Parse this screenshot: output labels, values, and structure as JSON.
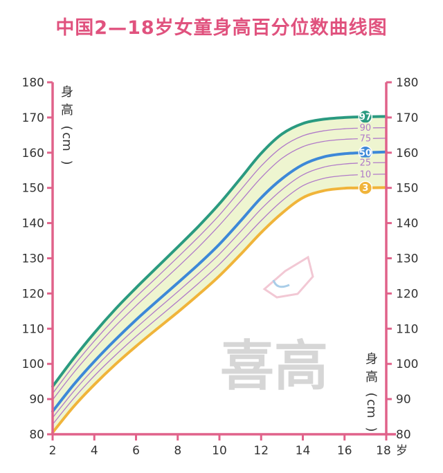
{
  "title": "中国2—18岁女童身高百分位数曲线图",
  "colors": {
    "title": "#e0527e",
    "axis": "#e0628a",
    "band_fill": "#eef5d0",
    "p97": "#2a9a80",
    "p50": "#3d88d8",
    "p3": "#f0b43a",
    "thin": "#b07ac8"
  },
  "watermark": "喜高",
  "chart_data": {
    "type": "line",
    "title": "中国2—18岁女童身高百分位数曲线图",
    "xlabel_unit": "岁",
    "ylabel_chars": [
      "身",
      "高",
      "(",
      "cm",
      ")"
    ],
    "xlim": [
      2,
      18
    ],
    "ylim": [
      80,
      180
    ],
    "x_ticks": [
      2,
      4,
      6,
      8,
      10,
      12,
      14,
      16,
      18
    ],
    "y_ticks": [
      80,
      90,
      100,
      110,
      120,
      130,
      140,
      150,
      160,
      170,
      180
    ],
    "grid": false,
    "x": [
      2,
      3,
      4,
      5,
      6,
      7,
      8,
      9,
      10,
      11,
      12,
      13,
      14,
      15,
      16,
      17,
      18
    ],
    "series": [
      {
        "name": "97",
        "values": [
          93.6,
          101.5,
          108.8,
          115.5,
          121.6,
          127.4,
          133.2,
          139.1,
          145.5,
          152.6,
          159.8,
          165.3,
          168.3,
          169.5,
          170.0,
          170.2,
          170.3
        ]
      },
      {
        "name": "90",
        "values": [
          91.6,
          99.4,
          106.5,
          113.0,
          119.0,
          124.6,
          130.3,
          136.1,
          142.3,
          149.3,
          156.2,
          161.6,
          164.8,
          166.2,
          166.8,
          167.0,
          167.1
        ]
      },
      {
        "name": "75",
        "values": [
          89.8,
          97.4,
          104.3,
          110.7,
          116.5,
          122.0,
          127.5,
          133.2,
          139.4,
          146.1,
          152.9,
          158.4,
          161.7,
          163.2,
          163.8,
          164.0,
          164.1
        ]
      },
      {
        "name": "50",
        "values": [
          86.5,
          94.0,
          100.7,
          106.8,
          112.5,
          117.8,
          123.0,
          128.3,
          134.0,
          140.5,
          147.2,
          152.6,
          156.6,
          158.8,
          159.7,
          160.0,
          160.2
        ]
      },
      {
        "name": "25",
        "values": [
          84.7,
          92.1,
          98.7,
          104.7,
          110.2,
          115.4,
          120.5,
          125.7,
          131.2,
          137.5,
          144.0,
          149.5,
          153.7,
          155.9,
          156.8,
          157.1,
          157.2
        ]
      },
      {
        "name": "10",
        "values": [
          82.8,
          90.1,
          96.6,
          102.4,
          107.8,
          112.8,
          117.8,
          122.9,
          128.3,
          134.4,
          140.7,
          146.3,
          150.6,
          152.7,
          153.5,
          153.8,
          153.9
        ]
      },
      {
        "name": "3",
        "values": [
          80.5,
          87.8,
          94.1,
          99.8,
          105.0,
          109.9,
          114.7,
          119.7,
          125.0,
          131.0,
          137.3,
          142.8,
          147.2,
          149.2,
          149.9,
          150.0,
          150.1
        ]
      }
    ]
  }
}
